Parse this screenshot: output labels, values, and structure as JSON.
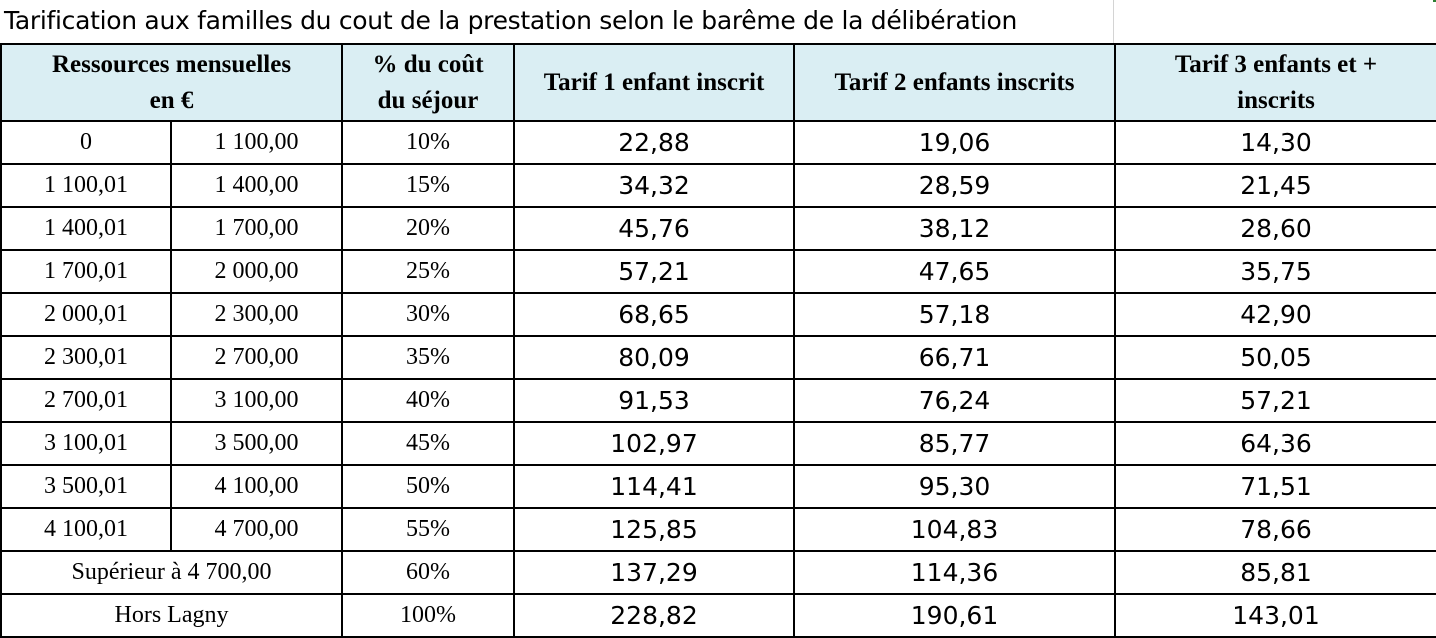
{
  "title": "Tarification aux familles du cout de la prestation selon le barême de la délibération",
  "headers": {
    "resources": [
      "Ressources mensuelles",
      "en €"
    ],
    "percent": [
      "% du coût",
      "du séjour"
    ],
    "tarif1": "Tarif 1 enfant inscrit",
    "tarif2": "Tarif 2 enfants inscrits",
    "tarif3": [
      "Tarif 3 enfants et +",
      "inscrits"
    ]
  },
  "rows": [
    {
      "min": "0",
      "max": "1 100,00",
      "pct": "10%",
      "t1": "22,88",
      "t2": "19,06",
      "t3": "14,30"
    },
    {
      "min": "1 100,01",
      "max": "1 400,00",
      "pct": "15%",
      "t1": "34,32",
      "t2": "28,59",
      "t3": "21,45"
    },
    {
      "min": "1 400,01",
      "max": "1 700,00",
      "pct": "20%",
      "t1": "45,76",
      "t2": "38,12",
      "t3": "28,60"
    },
    {
      "min": "1 700,01",
      "max": "2 000,00",
      "pct": "25%",
      "t1": "57,21",
      "t2": "47,65",
      "t3": "35,75"
    },
    {
      "min": "2 000,01",
      "max": "2 300,00",
      "pct": "30%",
      "t1": "68,65",
      "t2": "57,18",
      "t3": "42,90"
    },
    {
      "min": "2 300,01",
      "max": "2 700,00",
      "pct": "35%",
      "t1": "80,09",
      "t2": "66,71",
      "t3": "50,05"
    },
    {
      "min": "2 700,01",
      "max": "3 100,00",
      "pct": "40%",
      "t1": "91,53",
      "t2": "76,24",
      "t3": "57,21"
    },
    {
      "min": "3 100,01",
      "max": "3 500,00",
      "pct": "45%",
      "t1": "102,97",
      "t2": "85,77",
      "t3": "64,36"
    },
    {
      "min": "3 500,01",
      "max": "4 100,00",
      "pct": "50%",
      "t1": "114,41",
      "t2": "95,30",
      "t3": "71,51"
    },
    {
      "min": "4 100,01",
      "max": "4 700,00",
      "pct": "55%",
      "t1": "125,85",
      "t2": "104,83",
      "t3": "78,66"
    }
  ],
  "special_rows": [
    {
      "label": "Supérieur à 4 700,00",
      "pct": "60%",
      "t1": "137,29",
      "t2": "114,36",
      "t3": "85,81"
    },
    {
      "label": "Hors Lagny",
      "pct": "100%",
      "t1": "228,82",
      "t2": "190,61",
      "t3": "143,01"
    }
  ],
  "colors": {
    "header_bg": "#daeef3",
    "border": "#000000"
  }
}
